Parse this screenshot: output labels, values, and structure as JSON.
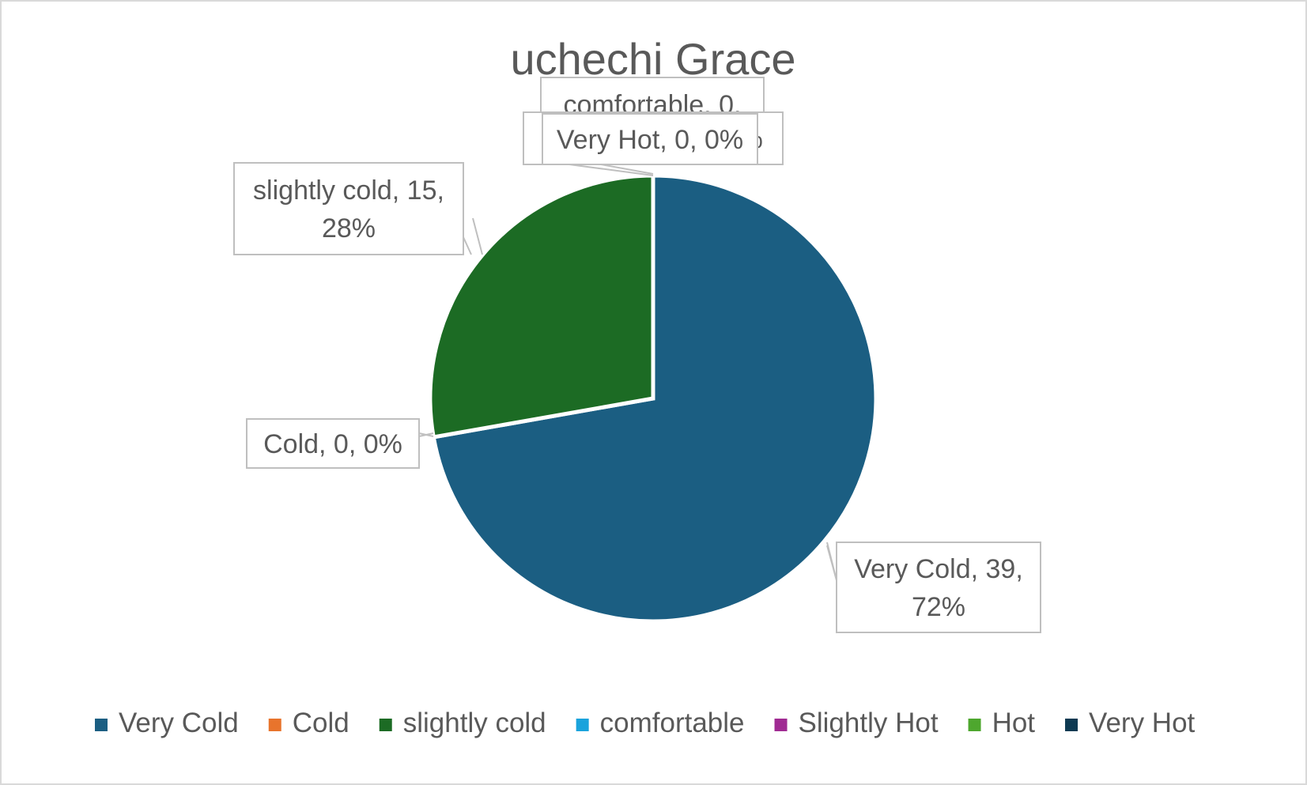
{
  "chart_data": {
    "type": "pie",
    "title": "uchechi Grace",
    "categories": [
      "Very Cold",
      "Cold",
      "slightly cold",
      "comfortable",
      "Slightly Hot",
      "Hot",
      "Very Hot"
    ],
    "values": [
      39,
      0,
      15,
      0,
      0,
      0,
      0
    ],
    "percentages": [
      "72%",
      "0%",
      "28%",
      "0%",
      "0%",
      "0%",
      "0%"
    ],
    "colors": [
      "#1b5e82",
      "#e8742c",
      "#1c6b24",
      "#1aa3dc",
      "#a02b93",
      "#4ea72e",
      "#0d3a52"
    ],
    "data_labels": [
      {
        "lines": [
          "Very Cold, 39,",
          "72%"
        ]
      },
      {
        "lines": [
          "Cold, 0, 0%"
        ]
      },
      {
        "lines": [
          "slightly cold, 15,",
          "28%"
        ]
      },
      {
        "lines": [
          "comfortable, 0,"
        ]
      },
      {
        "lines": [
          "Slightly Hot, 0, 0%"
        ]
      },
      {
        "lines": [
          ""
        ]
      },
      {
        "lines": [
          "Very Hot, 0, 0%"
        ]
      }
    ],
    "legend_position": "bottom",
    "start_angle_deg": 0,
    "direction": "clockwise"
  }
}
